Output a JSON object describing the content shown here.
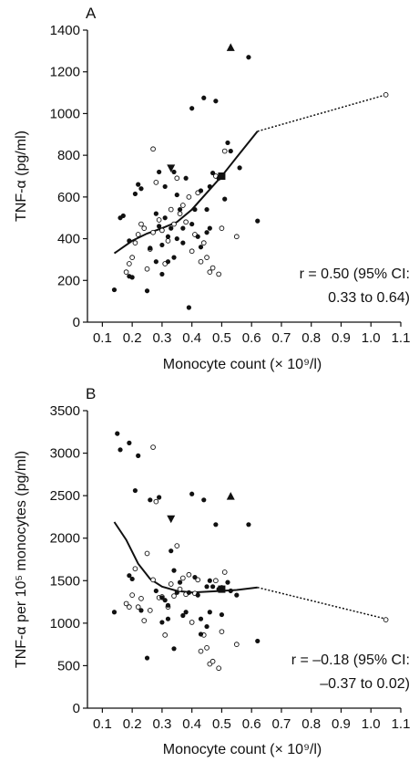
{
  "chart_data": [
    {
      "type": "scatter",
      "panel_label": "A",
      "ylabel": "TNF-α (pg/ml)",
      "xlabel": "Monocyte count (× 10⁹/l)",
      "xlim": [
        0.05,
        1.1
      ],
      "ylim": [
        0,
        1400
      ],
      "xticks": [
        0.1,
        0.2,
        0.3,
        0.4,
        0.5,
        0.6,
        0.7,
        0.8,
        0.9,
        1.0,
        1.1
      ],
      "yticks": [
        0,
        200,
        400,
        600,
        800,
        1000,
        1200,
        1400
      ],
      "xtick_labels": [
        "0.1",
        "0.2",
        "0.3",
        "0.4",
        "0.5",
        "0.6",
        "0.7",
        "0.8",
        "0.9",
        "1.0",
        "1.1"
      ],
      "ytick_labels": [
        "0",
        "200",
        "400",
        "600",
        "800",
        "1000",
        "1200",
        "1400"
      ],
      "annotation_line1": "r = 0.50 (95% CI:",
      "annotation_line2": "0.33 to 0.64)",
      "filled_points": [
        [
          0.14,
          155
        ],
        [
          0.16,
          500
        ],
        [
          0.17,
          510
        ],
        [
          0.19,
          390
        ],
        [
          0.19,
          220
        ],
        [
          0.2,
          215
        ],
        [
          0.21,
          615
        ],
        [
          0.22,
          660
        ],
        [
          0.23,
          640
        ],
        [
          0.25,
          150
        ],
        [
          0.26,
          355
        ],
        [
          0.28,
          520
        ],
        [
          0.28,
          290
        ],
        [
          0.29,
          720
        ],
        [
          0.29,
          460
        ],
        [
          0.3,
          230
        ],
        [
          0.3,
          370
        ],
        [
          0.31,
          650
        ],
        [
          0.31,
          500
        ],
        [
          0.32,
          410
        ],
        [
          0.32,
          290
        ],
        [
          0.33,
          450
        ],
        [
          0.34,
          310
        ],
        [
          0.34,
          720
        ],
        [
          0.35,
          610
        ],
        [
          0.35,
          400
        ],
        [
          0.36,
          540
        ],
        [
          0.37,
          380
        ],
        [
          0.37,
          450
        ],
        [
          0.38,
          690
        ],
        [
          0.39,
          70
        ],
        [
          0.4,
          1025
        ],
        [
          0.4,
          470
        ],
        [
          0.41,
          540
        ],
        [
          0.42,
          410
        ],
        [
          0.43,
          630
        ],
        [
          0.44,
          1075
        ],
        [
          0.45,
          430
        ],
        [
          0.45,
          540
        ],
        [
          0.46,
          650
        ],
        [
          0.47,
          715
        ],
        [
          0.48,
          1060
        ],
        [
          0.49,
          690
        ],
        [
          0.5,
          695
        ],
        [
          0.51,
          590
        ],
        [
          0.52,
          860
        ],
        [
          0.53,
          820
        ],
        [
          0.56,
          740
        ],
        [
          0.59,
          1270
        ],
        [
          0.62,
          485
        ],
        [
          0.46,
          450
        ],
        [
          0.43,
          360
        ]
      ],
      "open_points": [
        [
          0.18,
          240
        ],
        [
          0.19,
          280
        ],
        [
          0.2,
          310
        ],
        [
          0.21,
          380
        ],
        [
          0.22,
          420
        ],
        [
          0.23,
          470
        ],
        [
          0.24,
          450
        ],
        [
          0.25,
          255
        ],
        [
          0.26,
          350
        ],
        [
          0.27,
          830
        ],
        [
          0.27,
          430
        ],
        [
          0.28,
          670
        ],
        [
          0.29,
          490
        ],
        [
          0.3,
          440
        ],
        [
          0.31,
          280
        ],
        [
          0.32,
          390
        ],
        [
          0.33,
          540
        ],
        [
          0.34,
          470
        ],
        [
          0.35,
          690
        ],
        [
          0.36,
          520
        ],
        [
          0.37,
          560
        ],
        [
          0.38,
          480
        ],
        [
          0.39,
          600
        ],
        [
          0.4,
          340
        ],
        [
          0.41,
          420
        ],
        [
          0.42,
          620
        ],
        [
          0.43,
          290
        ],
        [
          0.44,
          380
        ],
        [
          0.45,
          310
        ],
        [
          0.46,
          240
        ],
        [
          0.47,
          260
        ],
        [
          0.48,
          700
        ],
        [
          0.49,
          230
        ],
        [
          0.5,
          450
        ],
        [
          0.51,
          820
        ],
        [
          0.55,
          410
        ],
        [
          1.05,
          1090
        ]
      ],
      "triangle_points": [
        [
          0.53,
          1315
        ]
      ],
      "inverted_triangle_points": [
        [
          0.33,
          740
        ]
      ],
      "square_points": [
        [
          0.5,
          700
        ]
      ],
      "trend_solid": [
        [
          0.14,
          330
        ],
        [
          0.2,
          390
        ],
        [
          0.25,
          425
        ],
        [
          0.3,
          450
        ],
        [
          0.35,
          480
        ],
        [
          0.4,
          540
        ],
        [
          0.45,
          620
        ],
        [
          0.5,
          700
        ],
        [
          0.55,
          790
        ],
        [
          0.62,
          915
        ]
      ],
      "trend_dotted": [
        [
          0.62,
          915
        ],
        [
          1.05,
          1090
        ]
      ]
    },
    {
      "type": "scatter",
      "panel_label": "B",
      "ylabel": "TNF-α per 10⁵ monocytes (pg/ml)",
      "xlabel": "Monocyte count (× 10⁹/l)",
      "xlim": [
        0.05,
        1.1
      ],
      "ylim": [
        0,
        3500
      ],
      "xticks": [
        0.1,
        0.2,
        0.3,
        0.4,
        0.5,
        0.6,
        0.7,
        0.8,
        0.9,
        1.0,
        1.1
      ],
      "yticks": [
        0,
        500,
        1000,
        1500,
        2000,
        2500,
        3000,
        3500
      ],
      "xtick_labels": [
        "0.1",
        "0.2",
        "0.3",
        "0.4",
        "0.5",
        "0.6",
        "0.7",
        "0.8",
        "0.9",
        "1.0",
        "1.1"
      ],
      "ytick_labels": [
        "0",
        "500",
        "1000",
        "1500",
        "2000",
        "2500",
        "3000",
        "3500"
      ],
      "annotation_line1": "r = –0.18 (95% CI:",
      "annotation_line2": "–0.37 to 0.02)",
      "filled_points": [
        [
          0.14,
          1130
        ],
        [
          0.15,
          3230
        ],
        [
          0.16,
          3040
        ],
        [
          0.19,
          3120
        ],
        [
          0.19,
          1560
        ],
        [
          0.2,
          1520
        ],
        [
          0.21,
          2560
        ],
        [
          0.22,
          2970
        ],
        [
          0.23,
          1150
        ],
        [
          0.25,
          590
        ],
        [
          0.26,
          2450
        ],
        [
          0.28,
          1380
        ],
        [
          0.29,
          2480
        ],
        [
          0.3,
          1010
        ],
        [
          0.3,
          1300
        ],
        [
          0.31,
          1270
        ],
        [
          0.32,
          1210
        ],
        [
          0.32,
          1050
        ],
        [
          0.33,
          1850
        ],
        [
          0.34,
          1620
        ],
        [
          0.34,
          700
        ],
        [
          0.35,
          1360
        ],
        [
          0.36,
          1480
        ],
        [
          0.37,
          1090
        ],
        [
          0.38,
          1130
        ],
        [
          0.39,
          1360
        ],
        [
          0.4,
          2520
        ],
        [
          0.41,
          1540
        ],
        [
          0.42,
          1330
        ],
        [
          0.43,
          1050
        ],
        [
          0.44,
          2450
        ],
        [
          0.45,
          960
        ],
        [
          0.45,
          1430
        ],
        [
          0.46,
          1500
        ],
        [
          0.47,
          1430
        ],
        [
          0.48,
          2160
        ],
        [
          0.49,
          1400
        ],
        [
          0.5,
          1100
        ],
        [
          0.5,
          1420
        ],
        [
          0.52,
          1480
        ],
        [
          0.53,
          1380
        ],
        [
          0.55,
          1330
        ],
        [
          0.59,
          2160
        ],
        [
          0.62,
          790
        ],
        [
          0.43,
          870
        ],
        [
          0.46,
          1130
        ]
      ],
      "open_points": [
        [
          0.18,
          1230
        ],
        [
          0.19,
          1190
        ],
        [
          0.2,
          1330
        ],
        [
          0.21,
          1640
        ],
        [
          0.22,
          1190
        ],
        [
          0.23,
          1290
        ],
        [
          0.24,
          1030
        ],
        [
          0.25,
          1820
        ],
        [
          0.26,
          1150
        ],
        [
          0.27,
          3070
        ],
        [
          0.27,
          1510
        ],
        [
          0.28,
          2430
        ],
        [
          0.29,
          1300
        ],
        [
          0.3,
          1310
        ],
        [
          0.31,
          860
        ],
        [
          0.32,
          1190
        ],
        [
          0.33,
          1460
        ],
        [
          0.34,
          1320
        ],
        [
          0.35,
          1910
        ],
        [
          0.36,
          1400
        ],
        [
          0.37,
          1530
        ],
        [
          0.38,
          1340
        ],
        [
          0.39,
          1570
        ],
        [
          0.4,
          1010
        ],
        [
          0.41,
          1350
        ],
        [
          0.42,
          1510
        ],
        [
          0.43,
          670
        ],
        [
          0.44,
          860
        ],
        [
          0.45,
          710
        ],
        [
          0.46,
          520
        ],
        [
          0.47,
          550
        ],
        [
          0.48,
          1500
        ],
        [
          0.49,
          470
        ],
        [
          0.5,
          900
        ],
        [
          0.51,
          1600
        ],
        [
          0.55,
          750
        ],
        [
          1.05,
          1040
        ]
      ],
      "triangle_points": [
        [
          0.53,
          2490
        ]
      ],
      "inverted_triangle_points": [
        [
          0.33,
          2230
        ]
      ],
      "square_points": [
        [
          0.5,
          1400
        ]
      ],
      "trend_solid": [
        [
          0.14,
          2190
        ],
        [
          0.18,
          1980
        ],
        [
          0.22,
          1700
        ],
        [
          0.26,
          1520
        ],
        [
          0.3,
          1430
        ],
        [
          0.35,
          1380
        ],
        [
          0.4,
          1360
        ],
        [
          0.45,
          1370
        ],
        [
          0.5,
          1380
        ],
        [
          0.55,
          1390
        ],
        [
          0.62,
          1420
        ]
      ],
      "trend_dotted": [
        [
          0.62,
          1420
        ],
        [
          1.05,
          1050
        ]
      ]
    }
  ]
}
